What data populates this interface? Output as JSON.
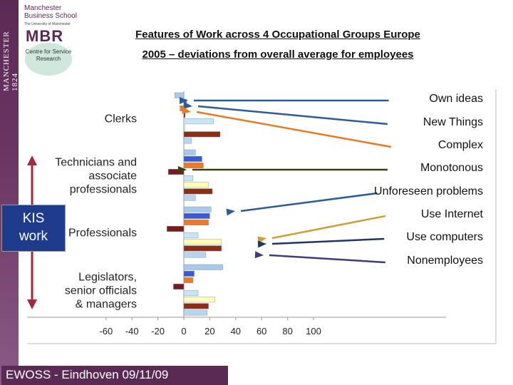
{
  "branding": {
    "side_text": "MANCHESTER 1824",
    "school": "Manchester Business School",
    "university": "The University of Manchester",
    "mbr": "MBR",
    "centre": "Centre for Service Research"
  },
  "title_line1": "Features of Work across  4 Occupational Groups Europe",
  "title_line2": "2005 – deviations from overall average for employees",
  "kis_label_line1": "KIS",
  "kis_label_line2": "work",
  "footer": "EWOSS  -  Eindhoven 09/11/09",
  "colors": {
    "own_ideas": "#a9c8ea",
    "new_things": "#3b5bd6",
    "complex": "#f07a22",
    "monotonous": "#7a1a1a",
    "unforeseen": "#c6e6f5",
    "internet": "#fdfdb8",
    "computers": "#8b2e12",
    "nonemployees": "#b7d5f0"
  },
  "chart_data": {
    "type": "bar",
    "orientation": "horizontal",
    "categories": [
      "Clerks",
      "Technicians and associate professionals",
      "Professionals",
      "Legislators, senior officials & managers"
    ],
    "category_labels": [
      [
        "Clerks"
      ],
      [
        "Technicians and",
        "associate",
        "professionals"
      ],
      [
        "Professionals"
      ],
      [
        "Legislators,",
        "senior officials",
        "& managers"
      ]
    ],
    "series": [
      {
        "name": "Own ideas",
        "values": [
          -7,
          9,
          21,
          30
        ]
      },
      {
        "name": "New Things",
        "values": [
          2,
          14,
          20,
          8
        ]
      },
      {
        "name": "Complex",
        "values": [
          -3,
          15,
          19,
          7
        ]
      },
      {
        "name": "Monotonous",
        "values": [
          1,
          -12,
          -13,
          -8
        ]
      },
      {
        "name": "Unforeseen problems",
        "values": [
          23,
          7,
          11,
          11
        ]
      },
      {
        "name": "Use Internet",
        "values": [
          0,
          19,
          29,
          24
        ]
      },
      {
        "name": "Use computers",
        "values": [
          28,
          22,
          29,
          19
        ]
      },
      {
        "name": "Nonemployees",
        "values": [
          6,
          9,
          17,
          18
        ]
      }
    ],
    "xlim": [
      -60,
      120
    ],
    "xticks": [
      -60,
      -40,
      -20,
      0,
      20,
      40,
      60,
      80,
      100
    ],
    "grid": false,
    "legend": "right, with arrows pointing to Professionals bars"
  }
}
